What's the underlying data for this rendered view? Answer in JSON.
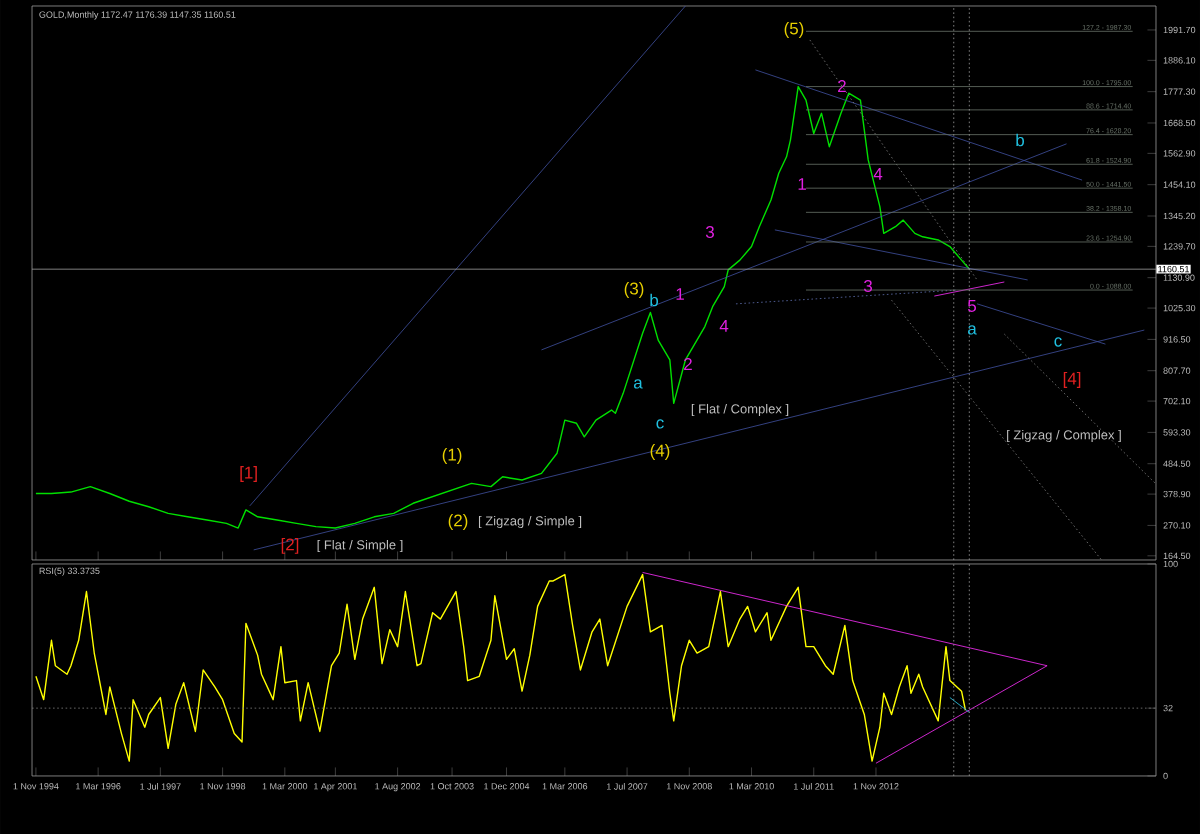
{
  "chart_data": [
    {
      "type": "line",
      "title": "GOLD,Monthly  1172.47 1176.39 1147.35 1160.51",
      "tick_labels": "y",
      "xlim": [
        "1994-10",
        "2018-11"
      ],
      "ylim": [
        150,
        2075
      ],
      "yticks": [
        {
          "value": 164.5,
          "label": "164.50"
        },
        {
          "value": 270.1,
          "label": "270.10"
        },
        {
          "value": 378.9,
          "label": "378.90"
        },
        {
          "value": 484.5,
          "label": "484.50"
        },
        {
          "value": 593.3,
          "label": "593.30"
        },
        {
          "value": 702.1,
          "label": "702.10"
        },
        {
          "value": 807.7,
          "label": "807.70"
        },
        {
          "value": 916.5,
          "label": "916.50"
        },
        {
          "value": 1025.3,
          "label": "1025.30"
        },
        {
          "value": 1130.9,
          "label": "1130.90"
        },
        {
          "value": 1239.7,
          "label": "1239.70"
        },
        {
          "value": 1345.2,
          "label": "1345.20"
        },
        {
          "value": 1454.1,
          "label": "1454.10"
        },
        {
          "value": 1562.9,
          "label": "1562.90"
        },
        {
          "value": 1668.5,
          "label": "1668.50"
        },
        {
          "value": 1777.3,
          "label": "1777.30"
        },
        {
          "value": 1886.1,
          "label": "1886.10"
        },
        {
          "value": 1991.7,
          "label": "1991.70"
        }
      ],
      "xticks": [
        {
          "value": "1994-11",
          "label": null
        },
        {
          "value": "1996-03",
          "label": null
        },
        {
          "value": "1997-07",
          "label": null
        },
        {
          "value": "1998-11",
          "label": null
        },
        {
          "value": "2000-03",
          "label": null
        },
        {
          "value": "2001-04",
          "label": null
        },
        {
          "value": "2002-08",
          "label": null
        },
        {
          "value": "2003-10",
          "label": null
        },
        {
          "value": "2004-12",
          "label": null
        },
        {
          "value": "2006-03",
          "label": null
        },
        {
          "value": "2007-07",
          "label": null
        },
        {
          "value": "2008-11",
          "label": null
        },
        {
          "value": "2010-03",
          "label": null
        },
        {
          "value": "2011-07",
          "label": null
        },
        {
          "value": "2012-11",
          "label": null
        }
      ],
      "series": [
        {
          "color": "#00e000",
          "line_style": "solid",
          "x": [
            "1994-11",
            "1995-03",
            "1995-08",
            "1996-01",
            "1996-06",
            "1996-11",
            "1997-04",
            "1997-09",
            "1998-02",
            "1998-07",
            "1998-12",
            "1999-03",
            "1999-05",
            "1999-08",
            "2000-01",
            "2000-06",
            "2000-11",
            "2001-04",
            "2001-09",
            "2002-02",
            "2002-07",
            "2002-12",
            "2003-05",
            "2003-10",
            "2004-03",
            "2004-08",
            "2004-11",
            "2005-04",
            "2005-09",
            "2006-01",
            "2006-03",
            "2006-06",
            "2006-08",
            "2006-11",
            "2007-03",
            "2007-04",
            "2007-06",
            "2007-11",
            "2008-01",
            "2008-03",
            "2008-06",
            "2008-07",
            "2008-10",
            "2008-12",
            "2009-03",
            "2009-05",
            "2009-08",
            "2009-09",
            "2009-12",
            "2010-03",
            "2010-05",
            "2010-08",
            "2010-10",
            "2010-12",
            "2011-01",
            "2011-03",
            "2011-05",
            "2011-07",
            "2011-09",
            "2011-11",
            "2012-02",
            "2012-04",
            "2012-07",
            "2012-09",
            "2012-12",
            "2013-01",
            "2013-04",
            "2013-06",
            "2013-09",
            "2013-11",
            "2014-03",
            "2014-06",
            "2014-09",
            "2014-11"
          ],
          "values": [
            381,
            381,
            386,
            405,
            381,
            354,
            335,
            312,
            300,
            289,
            277,
            261,
            324,
            300,
            289,
            277,
            266,
            261,
            277,
            300,
            312,
            347,
            370,
            393,
            416,
            405,
            439,
            428,
            451,
            521,
            636,
            625,
            578,
            636,
            671,
            660,
            729,
            938,
            1010,
            914,
            845,
            694,
            845,
            891,
            961,
            1030,
            1100,
            1158,
            1192,
            1239,
            1308,
            1401,
            1494,
            1551,
            1609,
            1795,
            1748,
            1632,
            1702,
            1586,
            1702,
            1772,
            1748,
            1540,
            1378,
            1285,
            1308,
            1331,
            1285,
            1273,
            1262,
            1239,
            1192,
            1161
          ]
        },
        {
          "color": "#4050a0",
          "line_style": "solid",
          "x": [
            "1999-06",
            "2008-10"
          ],
          "values": [
            338,
            2075
          ]
        },
        {
          "color": "#4050a0",
          "line_style": "solid",
          "x": [
            "1999-07",
            "2018-08"
          ],
          "values": [
            185,
            949
          ]
        },
        {
          "color": "#4050a0",
          "line_style": "solid",
          "x": [
            "2005-09",
            "2016-12"
          ],
          "values": [
            880,
            1596
          ]
        },
        {
          "color": "#4050a0",
          "line_style": "solid",
          "x": [
            "2010-04",
            "2017-04"
          ],
          "values": [
            1853,
            1470
          ]
        },
        {
          "color": "#4050a0",
          "line_style": "solid",
          "x": [
            "2010-09",
            "2016-02"
          ],
          "values": [
            1297,
            1123
          ]
        },
        {
          "color": "#4050a0",
          "line_style": "solid",
          "x": [
            "2015-01",
            "2017-10"
          ],
          "values": [
            1040,
            900
          ]
        },
        {
          "color": "#6070b0",
          "line_style": "dotted",
          "x": [
            "2009-11",
            "2014-08"
          ],
          "values": [
            1040,
            1088
          ]
        },
        {
          "color": "#808080",
          "line_style": "dotted",
          "x": [
            "2011-06",
            "2015-01"
          ],
          "values": [
            1957,
            1123
          ]
        },
        {
          "color": "#808080",
          "line_style": "dotted",
          "x": [
            "2013-03",
            "2017-09"
          ],
          "values": [
            1053,
            150
          ]
        },
        {
          "color": "#808080",
          "line_style": "dotted",
          "x": [
            "2015-08",
            "2018-11"
          ],
          "values": [
            935,
            414
          ]
        },
        {
          "color": "#ff30ff",
          "line_style": "solid",
          "x": [
            "2014-02",
            "2015-08"
          ],
          "values": [
            1067,
            1116
          ]
        },
        {
          "name": "127.2 - 1987.30",
          "color": "#6a746a",
          "line_style": "solid",
          "x": [
            "2011-05",
            "2018-05"
          ],
          "values": [
            1987,
            1987
          ]
        },
        {
          "name": "100.0 - 1795.00",
          "color": "#6a746a",
          "line_style": "solid",
          "x": [
            "2011-05",
            "2018-05"
          ],
          "values": [
            1795,
            1795
          ]
        },
        {
          "name": "88.6 - 1714.40",
          "color": "#6a746a",
          "line_style": "solid",
          "x": [
            "2011-05",
            "2018-05"
          ],
          "values": [
            1714,
            1714
          ]
        },
        {
          "name": "76.4 - 1628.20",
          "color": "#6a746a",
          "line_style": "solid",
          "x": [
            "2011-05",
            "2018-05"
          ],
          "values": [
            1628,
            1628
          ]
        },
        {
          "name": "61.8 - 1524.90",
          "color": "#6a746a",
          "line_style": "solid",
          "x": [
            "2011-05",
            "2018-05"
          ],
          "values": [
            1525,
            1525
          ]
        },
        {
          "name": "50.0 - 1441.50",
          "color": "#6a746a",
          "line_style": "solid",
          "x": [
            "2011-05",
            "2018-05"
          ],
          "values": [
            1442,
            1442
          ]
        },
        {
          "name": "38.2 - 1358.10",
          "color": "#6a746a",
          "line_style": "solid",
          "x": [
            "2011-05",
            "2018-05"
          ],
          "values": [
            1358,
            1358
          ]
        },
        {
          "name": "23.6 - 1254.90",
          "color": "#6a746a",
          "line_style": "solid",
          "x": [
            "2011-05",
            "2018-05"
          ],
          "values": [
            1255,
            1255
          ]
        },
        {
          "name": "0.0 - 1088.00",
          "color": "#6a746a",
          "line_style": "solid",
          "x": [
            "2011-05",
            "2018-05"
          ],
          "values": [
            1088,
            1088
          ]
        }
      ],
      "ref_lines": [
        {
          "axis": "y",
          "value": 1160.51,
          "label": "1160.51",
          "color": "#a0a0a0",
          "line_style": "solid"
        },
        {
          "axis": "x",
          "value": "2014-07",
          "color": "#a0a0a0",
          "line_style": "dotted"
        },
        {
          "axis": "x",
          "value": "2014-11",
          "color": "#a0a0a0",
          "line_style": "dotted"
        }
      ],
      "annotations": [
        "[1]",
        "[2]",
        "[ Flat / Simple ]",
        "(1)",
        "(2)",
        "[ Zigzag / Simple ]",
        "(3)",
        "b",
        "1",
        "4",
        "2",
        "a",
        "c",
        "(4)",
        "[ Flat / Complex ]",
        "3",
        "(5)",
        "1",
        "2",
        "4",
        "3",
        "5",
        "a",
        "b",
        "c",
        "[4]",
        "[ Zigzag / Complex ]"
      ]
    },
    {
      "type": "line",
      "title": "RSI(5) 33.3735",
      "xlim": [
        "1994-10",
        "2018-11"
      ],
      "ylim": [
        0,
        100
      ],
      "yticks": [
        0,
        32,
        100
      ],
      "xticks": [
        {
          "value": "1994-11",
          "label": "1 Nov 1994"
        },
        {
          "value": "1996-03",
          "label": "1 Mar 1996"
        },
        {
          "value": "1997-07",
          "label": "1 Jul 1997"
        },
        {
          "value": "1998-11",
          "label": "1 Nov 1998"
        },
        {
          "value": "2000-03",
          "label": "1 Mar 2000"
        },
        {
          "value": "2001-04",
          "label": "1 Apr 2001"
        },
        {
          "value": "2002-08",
          "label": "1 Aug 2002"
        },
        {
          "value": "2003-10",
          "label": "1 Oct 2003"
        },
        {
          "value": "2004-12",
          "label": "1 Dec 2004"
        },
        {
          "value": "2006-03",
          "label": "1 Mar 2006"
        },
        {
          "value": "2007-07",
          "label": "1 Jul 2007"
        },
        {
          "value": "2008-11",
          "label": "1 Nov 2008"
        },
        {
          "value": "2010-03",
          "label": "1 Mar 2010"
        },
        {
          "value": "2011-07",
          "label": "1 Jul 2011"
        },
        {
          "value": "2012-11",
          "label": "1 Nov 2012"
        }
      ],
      "series": [
        {
          "color": "#ffff00",
          "line_style": "solid",
          "x": [
            "1994-11",
            "1995-01",
            "1995-03",
            "1995-04",
            "1995-07",
            "1995-08",
            "1995-10",
            "1995-12",
            "1996-02",
            "1996-05",
            "1996-06",
            "1996-09",
            "1996-11",
            "1996-12",
            "1997-03",
            "1997-04",
            "1997-07",
            "1997-09",
            "1997-11",
            "1998-01",
            "1998-04",
            "1998-06",
            "1998-09",
            "1998-11",
            "1999-02",
            "1999-04",
            "1999-05",
            "1999-08",
            "1999-09",
            "1999-12",
            "2000-02",
            "2000-03",
            "2000-06",
            "2000-07",
            "2000-09",
            "2000-12",
            "2001-03",
            "2001-05",
            "2001-07",
            "2001-09",
            "2001-11",
            "2002-02",
            "2002-04",
            "2002-06",
            "2002-08",
            "2002-10",
            "2003-01",
            "2003-02",
            "2003-05",
            "2003-07",
            "2003-11",
            "2004-01",
            "2004-02",
            "2004-05",
            "2004-08",
            "2004-09",
            "2004-12",
            "2005-02",
            "2005-04",
            "2005-06",
            "2005-08",
            "2005-11",
            "2005-12",
            "2006-03",
            "2006-05",
            "2006-07",
            "2006-10",
            "2006-12",
            "2007-02",
            "2007-07",
            "2007-11",
            "2008-01",
            "2008-04",
            "2008-06",
            "2008-07",
            "2008-09",
            "2008-11",
            "2009-01",
            "2009-04",
            "2009-07",
            "2009-09",
            "2009-12",
            "2010-02",
            "2010-04",
            "2010-07",
            "2010-08",
            "2010-12",
            "2011-03",
            "2011-05",
            "2011-07",
            "2011-10",
            "2011-12",
            "2012-03",
            "2012-05",
            "2012-08",
            "2012-10",
            "2012-12",
            "2013-01",
            "2013-03",
            "2013-05",
            "2013-07",
            "2013-08",
            "2013-10",
            "2013-11",
            "2014-03",
            "2014-05",
            "2014-06",
            "2014-09",
            "2014-10"
          ],
          "values": [
            47,
            36,
            64,
            52,
            48,
            52,
            64,
            87,
            58,
            29,
            42,
            20,
            7,
            36,
            23,
            29,
            37,
            13,
            34,
            44,
            21,
            50,
            42,
            36,
            20,
            16,
            72,
            57,
            48,
            36,
            61,
            44,
            45,
            26,
            44,
            21,
            52,
            58,
            81,
            55,
            74,
            89,
            53,
            69,
            61,
            87,
            52,
            53,
            77,
            74,
            87,
            61,
            45,
            47,
            64,
            85,
            55,
            60,
            40,
            57,
            80,
            92,
            92,
            95,
            71,
            50,
            68,
            74,
            52,
            80,
            95,
            68,
            71,
            39,
            26,
            52,
            64,
            58,
            61,
            87,
            61,
            74,
            80,
            68,
            77,
            64,
            80,
            89,
            61,
            61,
            52,
            48,
            71,
            45,
            29,
            7,
            23,
            39,
            29,
            42,
            52,
            39,
            48,
            42,
            26,
            61,
            45,
            40,
            31
          ]
        },
        {
          "color": "#ff30ff",
          "line_style": "solid",
          "x": [
            "2007-11",
            "2016-07"
          ],
          "values": [
            96,
            52
          ]
        },
        {
          "color": "#ff30ff",
          "line_style": "solid",
          "x": [
            "2012-11",
            "2016-07"
          ],
          "values": [
            6,
            52
          ]
        },
        {
          "color": "#30d0f0",
          "line_style": "solid",
          "x": [
            "2014-06",
            "2014-11"
          ],
          "values": [
            37,
            30
          ]
        }
      ],
      "ref_lines": [
        {
          "axis": "y",
          "value": 32,
          "color": "#808080",
          "line_style": "dotted"
        },
        {
          "axis": "x",
          "value": "2014-07",
          "color": "#a0a0a0",
          "line_style": "dotted"
        },
        {
          "axis": "x",
          "value": "2014-11",
          "color": "#a0a0a0",
          "line_style": "dotted"
        }
      ]
    }
  ]
}
